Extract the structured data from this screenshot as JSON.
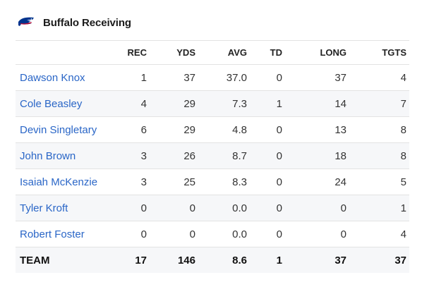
{
  "header": {
    "title": "Buffalo Receiving",
    "logo_icon": "bills-logo-icon",
    "colors": {
      "bills_blue": "#00338D",
      "bills_red": "#C60C30"
    }
  },
  "columns": [
    "REC",
    "YDS",
    "AVG",
    "TD",
    "LONG",
    "TGTS"
  ],
  "players": [
    {
      "name": "Dawson Knox",
      "rec": "1",
      "yds": "37",
      "avg": "37.0",
      "td": "0",
      "long": "37",
      "tgts": "4"
    },
    {
      "name": "Cole Beasley",
      "rec": "4",
      "yds": "29",
      "avg": "7.3",
      "td": "1",
      "long": "14",
      "tgts": "7"
    },
    {
      "name": "Devin Singletary",
      "rec": "6",
      "yds": "29",
      "avg": "4.8",
      "td": "0",
      "long": "13",
      "tgts": "8"
    },
    {
      "name": "John Brown",
      "rec": "3",
      "yds": "26",
      "avg": "8.7",
      "td": "0",
      "long": "18",
      "tgts": "8"
    },
    {
      "name": "Isaiah McKenzie",
      "rec": "3",
      "yds": "25",
      "avg": "8.3",
      "td": "0",
      "long": "24",
      "tgts": "5"
    },
    {
      "name": "Tyler Kroft",
      "rec": "0",
      "yds": "0",
      "avg": "0.0",
      "td": "0",
      "long": "0",
      "tgts": "1"
    },
    {
      "name": "Robert Foster",
      "rec": "0",
      "yds": "0",
      "avg": "0.0",
      "td": "0",
      "long": "0",
      "tgts": "4"
    }
  ],
  "team": {
    "name": "TEAM",
    "rec": "17",
    "yds": "146",
    "avg": "8.6",
    "td": "1",
    "long": "37",
    "tgts": "37"
  }
}
